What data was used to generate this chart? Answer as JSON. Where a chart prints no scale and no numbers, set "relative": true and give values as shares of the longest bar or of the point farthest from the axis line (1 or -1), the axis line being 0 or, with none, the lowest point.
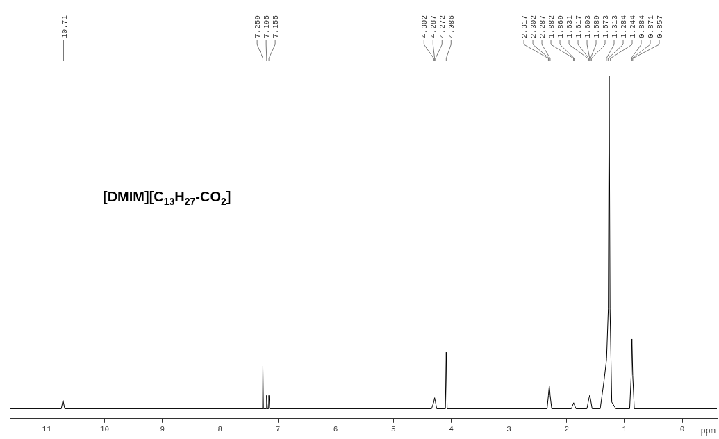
{
  "chart_data": {
    "type": "line",
    "relative": true,
    "xlabel": "ppm",
    "xlim": [
      11.63,
      -0.6
    ],
    "xticks": [
      11,
      10,
      9,
      8,
      7,
      6,
      5,
      4,
      3,
      2,
      1,
      0
    ],
    "grid": false,
    "legend": false,
    "marker": "none",
    "line_style": "solid",
    "series": [
      {
        "color": "#000000",
        "x": [
          11.63,
          10.75,
          10.72,
          10.69,
          7.3,
          7.265,
          7.259,
          7.25,
          7.2,
          7.195,
          7.18,
          7.16,
          7.155,
          7.14,
          4.34,
          4.302,
          4.287,
          4.272,
          4.25,
          4.1,
          4.086,
          4.07,
          2.34,
          2.317,
          2.302,
          2.287,
          2.26,
          1.92,
          1.88,
          1.84,
          1.65,
          1.617,
          1.603,
          1.589,
          1.56,
          1.42,
          1.35,
          1.31,
          1.28,
          1.265,
          1.25,
          1.22,
          1.15,
          0.91,
          0.884,
          0.871,
          0.857,
          0.83,
          -0.6
        ],
        "values": [
          0,
          0,
          0.026,
          0,
          0,
          0,
          0.128,
          0,
          0,
          0.04,
          0,
          0,
          0.04,
          0,
          0,
          0.02,
          0.033,
          0.02,
          0,
          0,
          0.17,
          0,
          0,
          0.04,
          0.07,
          0.04,
          0,
          0,
          0.018,
          0,
          0,
          0.03,
          0.04,
          0.03,
          0,
          0,
          0.09,
          0.15,
          0.3,
          1,
          0.3,
          0.02,
          0,
          0,
          0.1,
          0.21,
          0.1,
          0,
          0
        ]
      }
    ],
    "annotations": [
      "[DMIM][C$_{13}$H$_{27}$-CO$_{2}$]",
      {
        "text": "10.71",
        "x": 10.71
      },
      {
        "text": "7.259",
        "x": 7.259
      },
      {
        "text": "7.195",
        "x": 7.195
      },
      {
        "text": "7.155",
        "x": 7.155
      },
      {
        "text": "4.302",
        "x": 4.302
      },
      {
        "text": "4.287",
        "x": 4.287
      },
      {
        "text": "4.272",
        "x": 4.272
      },
      {
        "text": "4.086",
        "x": 4.086
      },
      {
        "text": "2.317",
        "x": 2.317
      },
      {
        "text": "2.302",
        "x": 2.302
      },
      {
        "text": "2.287",
        "x": 2.287
      },
      {
        "text": "1.882",
        "x": 1.882
      },
      {
        "text": "1.869",
        "x": 1.869
      },
      {
        "text": "1.631",
        "x": 1.631
      },
      {
        "text": "1.617",
        "x": 1.617
      },
      {
        "text": "1.603",
        "x": 1.603
      },
      {
        "text": "1.589",
        "x": 1.589
      },
      {
        "text": "1.573",
        "x": 1.573
      },
      {
        "text": "1.313",
        "x": 1.313
      },
      {
        "text": "1.284",
        "x": 1.284
      },
      {
        "text": "1.244",
        "x": 1.244
      },
      {
        "text": "0.884",
        "x": 0.884
      },
      {
        "text": "0.871",
        "x": 0.871
      },
      {
        "text": "0.857",
        "x": 0.857
      }
    ]
  }
}
